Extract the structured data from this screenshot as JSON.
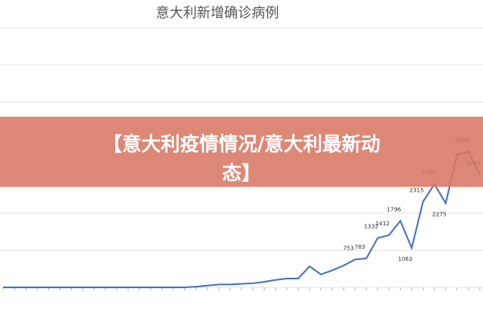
{
  "chart_data": {
    "type": "line",
    "title": "意大利新增确诊病例",
    "series": [
      {
        "color": "#4472c4",
        "values": [
          0,
          0,
          0,
          0,
          0,
          0,
          0,
          0,
          0,
          0,
          0,
          0,
          0,
          0,
          0,
          0,
          0,
          20,
          50,
          80,
          80,
          95,
          110,
          150,
          200,
          240,
          240,
          570,
          350,
          460,
          590,
          753,
          783,
          1332,
          1412,
          1796,
          1063,
          2315,
          2787,
          2275,
          3590,
          3666,
          3042
        ],
        "value_labels": [
          null,
          null,
          null,
          null,
          null,
          null,
          null,
          null,
          null,
          null,
          null,
          null,
          null,
          null,
          null,
          null,
          null,
          null,
          null,
          null,
          null,
          null,
          null,
          null,
          null,
          null,
          null,
          null,
          null,
          null,
          null,
          "753",
          "783",
          "1332",
          "1412",
          "1796",
          "1063",
          "2315",
          "2787",
          "2275",
          null,
          "3666",
          "3042"
        ]
      }
    ],
    "ylim": [
      0,
      7000
    ],
    "gridlines": [
      0,
      1000,
      2000,
      3000,
      4000,
      5000,
      6000,
      7000
    ],
    "grid": true
  },
  "banner": {
    "lines": [
      "【意大利疫情情况/意大利最新动",
      "态】"
    ]
  }
}
